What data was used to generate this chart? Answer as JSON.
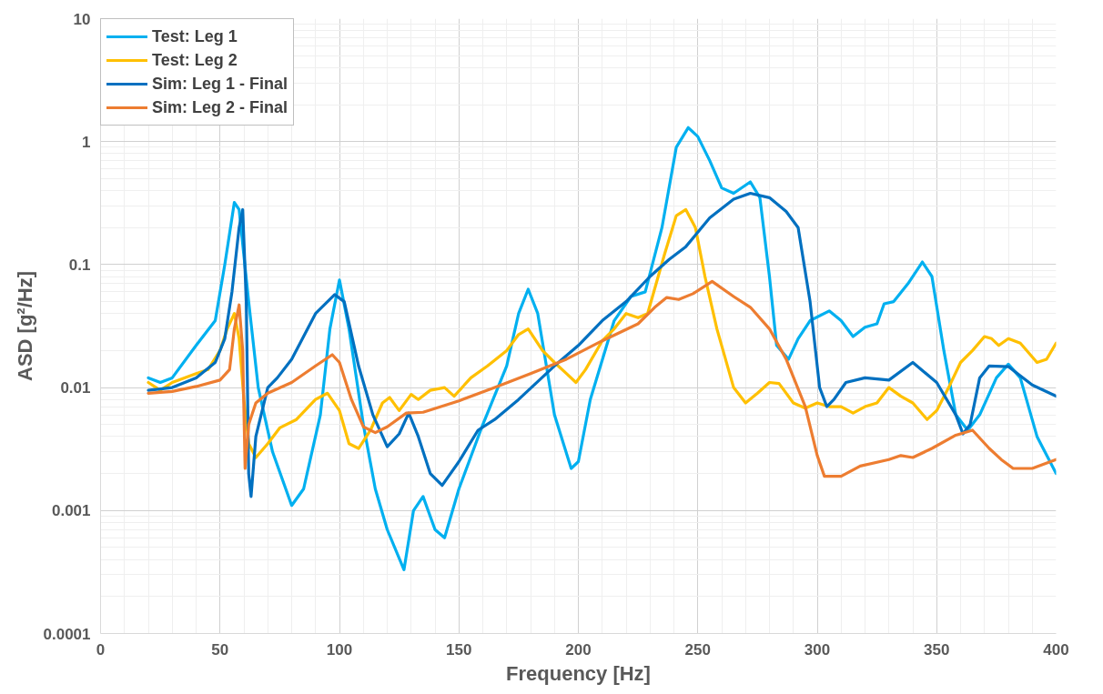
{
  "chart_data": {
    "type": "line",
    "xlabel": "Frequency [Hz]",
    "ylabel": "ASD [g²/Hz]",
    "log": "y",
    "xlim": [
      0,
      400
    ],
    "ylim": [
      0.0001,
      10
    ],
    "xticks": [
      0,
      50,
      100,
      150,
      200,
      250,
      300,
      350,
      400
    ],
    "yticks": [
      0.0001,
      0.001,
      0.01,
      0.1,
      1,
      10
    ],
    "grid": true,
    "legend": "top left",
    "line_style": "solid",
    "marker": "none",
    "series": [
      {
        "name": "Test: Leg 1",
        "color": "#00b0f0",
        "x": [
          20,
          25,
          30,
          40,
          48,
          52,
          56,
          58,
          62,
          66,
          72,
          80,
          85,
          92,
          96,
          100,
          104,
          110,
          115,
          120,
          127,
          131,
          135,
          140,
          144,
          150,
          160,
          170,
          175,
          179,
          183,
          190,
          197,
          200,
          205,
          215,
          222,
          228,
          235,
          241,
          246,
          250,
          255,
          260,
          265,
          272,
          276,
          280,
          283,
          288,
          292,
          297,
          305,
          310,
          315,
          320,
          325,
          328,
          332,
          338,
          344,
          348,
          353,
          358,
          363,
          368,
          375,
          380,
          385,
          392,
          400
        ],
        "values": [
          0.012,
          0.011,
          0.012,
          0.022,
          0.035,
          0.1,
          0.32,
          0.28,
          0.05,
          0.01,
          0.003,
          0.0011,
          0.0015,
          0.006,
          0.03,
          0.075,
          0.03,
          0.005,
          0.0015,
          0.0007,
          0.00033,
          0.001,
          0.0013,
          0.0007,
          0.0006,
          0.0015,
          0.005,
          0.015,
          0.04,
          0.063,
          0.04,
          0.006,
          0.0022,
          0.0025,
          0.008,
          0.035,
          0.055,
          0.06,
          0.2,
          0.9,
          1.3,
          1.1,
          0.7,
          0.42,
          0.38,
          0.47,
          0.35,
          0.08,
          0.022,
          0.017,
          0.025,
          0.035,
          0.042,
          0.035,
          0.026,
          0.031,
          0.033,
          0.048,
          0.05,
          0.07,
          0.105,
          0.08,
          0.02,
          0.006,
          0.0045,
          0.006,
          0.012,
          0.0155,
          0.012,
          0.004,
          0.002
        ]
      },
      {
        "name": "Test: Leg 2",
        "color": "#ffc000",
        "x": [
          20,
          25,
          30,
          40,
          45,
          50,
          53,
          56,
          58,
          60,
          62,
          65,
          70,
          75,
          82,
          90,
          95,
          100,
          104,
          108,
          113,
          118,
          121,
          125,
          130,
          133,
          138,
          144,
          148,
          155,
          162,
          170,
          175,
          179,
          185,
          190,
          195,
          199,
          203,
          210,
          215,
          220,
          225,
          229,
          236,
          241,
          245,
          249,
          253,
          258,
          265,
          270,
          275,
          280,
          284,
          290,
          295,
          300,
          305,
          310,
          315,
          320,
          325,
          330,
          335,
          340,
          346,
          350,
          355,
          360,
          365,
          370,
          373,
          376,
          380,
          385,
          392,
          396,
          400
        ],
        "values": [
          0.011,
          0.0095,
          0.011,
          0.013,
          0.014,
          0.02,
          0.03,
          0.04,
          0.025,
          0.008,
          0.0035,
          0.0027,
          0.0035,
          0.0047,
          0.0055,
          0.008,
          0.009,
          0.0065,
          0.0035,
          0.0032,
          0.0045,
          0.0075,
          0.0083,
          0.0065,
          0.0088,
          0.008,
          0.0095,
          0.01,
          0.0085,
          0.012,
          0.015,
          0.02,
          0.027,
          0.03,
          0.02,
          0.016,
          0.013,
          0.011,
          0.014,
          0.024,
          0.03,
          0.04,
          0.037,
          0.04,
          0.12,
          0.25,
          0.28,
          0.2,
          0.08,
          0.03,
          0.01,
          0.0075,
          0.009,
          0.011,
          0.0108,
          0.0075,
          0.0068,
          0.0075,
          0.007,
          0.007,
          0.0062,
          0.007,
          0.0075,
          0.01,
          0.0085,
          0.0075,
          0.0055,
          0.0065,
          0.01,
          0.016,
          0.02,
          0.026,
          0.025,
          0.022,
          0.025,
          0.023,
          0.016,
          0.017,
          0.023
        ]
      },
      {
        "name": "Sim: Leg 1 - Final",
        "color": "#0070c0",
        "x": [
          20,
          30,
          40,
          48,
          52,
          55,
          58,
          59.5,
          61,
          62,
          63,
          65,
          70,
          74,
          80,
          90,
          98,
          102,
          108,
          114,
          120,
          125,
          129,
          133,
          138,
          143,
          150,
          158,
          165,
          175,
          190,
          200,
          210,
          220,
          230,
          238,
          245,
          255,
          265,
          272,
          280,
          287,
          292,
          297,
          301,
          304,
          307,
          312,
          320,
          330,
          340,
          350,
          358,
          361,
          364,
          368,
          372,
          380,
          390,
          400
        ],
        "values": [
          0.0095,
          0.01,
          0.012,
          0.016,
          0.025,
          0.06,
          0.2,
          0.28,
          0.05,
          0.002,
          0.0013,
          0.004,
          0.01,
          0.012,
          0.017,
          0.04,
          0.057,
          0.05,
          0.015,
          0.006,
          0.0033,
          0.0042,
          0.0062,
          0.004,
          0.002,
          0.0016,
          0.0025,
          0.0045,
          0.0055,
          0.008,
          0.015,
          0.022,
          0.035,
          0.05,
          0.08,
          0.11,
          0.14,
          0.24,
          0.34,
          0.38,
          0.35,
          0.27,
          0.2,
          0.05,
          0.01,
          0.007,
          0.008,
          0.011,
          0.012,
          0.0115,
          0.016,
          0.011,
          0.006,
          0.0042,
          0.005,
          0.012,
          0.015,
          0.0148,
          0.0105,
          0.0085
        ]
      },
      {
        "name": "Sim: Leg 2 - Final",
        "color": "#ed7d31",
        "x": [
          20,
          30,
          40,
          50,
          54,
          56,
          58,
          59.5,
          60.5,
          62,
          65,
          70,
          80,
          90,
          97,
          100,
          105,
          110,
          115,
          120,
          128,
          135,
          150,
          165,
          180,
          195,
          210,
          225,
          232,
          237,
          242,
          248,
          256,
          265,
          272,
          280,
          287,
          295,
          300,
          303,
          310,
          318,
          330,
          335,
          340,
          348,
          358,
          365,
          372,
          377,
          382,
          390,
          400
        ],
        "values": [
          0.009,
          0.0093,
          0.0102,
          0.0115,
          0.014,
          0.03,
          0.047,
          0.02,
          0.0022,
          0.005,
          0.0075,
          0.009,
          0.011,
          0.015,
          0.0185,
          0.016,
          0.008,
          0.0048,
          0.0043,
          0.0048,
          0.0062,
          0.0063,
          0.0078,
          0.01,
          0.013,
          0.017,
          0.024,
          0.033,
          0.045,
          0.054,
          0.052,
          0.058,
          0.073,
          0.055,
          0.045,
          0.03,
          0.017,
          0.007,
          0.0028,
          0.0019,
          0.0019,
          0.0023,
          0.0026,
          0.0028,
          0.0027,
          0.0032,
          0.0041,
          0.0045,
          0.0032,
          0.0026,
          0.0022,
          0.0022,
          0.0026
        ]
      }
    ]
  }
}
